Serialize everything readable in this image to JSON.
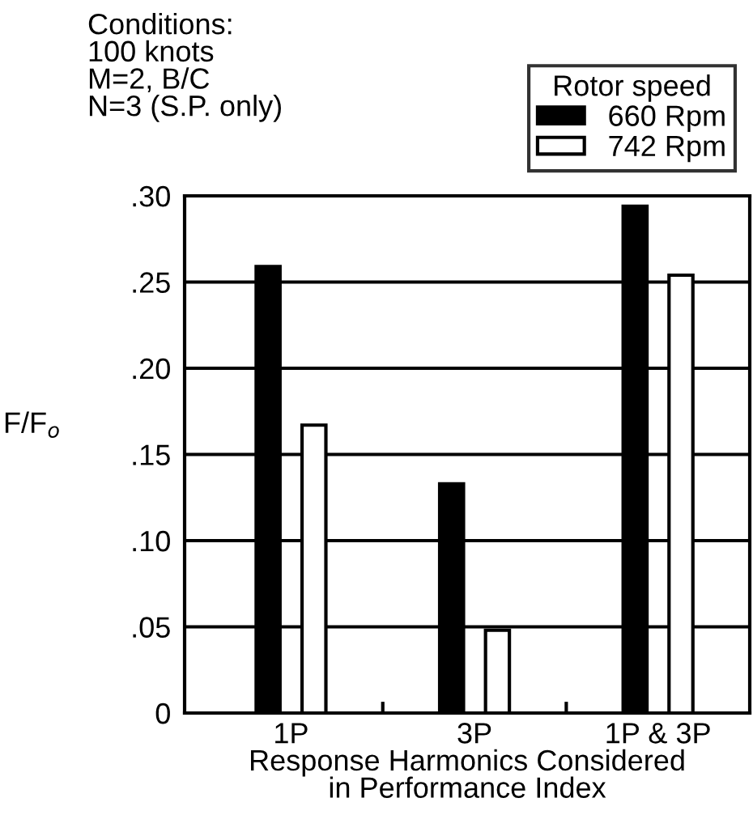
{
  "chart_data": {
    "type": "bar",
    "categories": [
      "1P",
      "3P",
      "1P & 3P"
    ],
    "series": [
      {
        "name": "660 Rpm",
        "color": "#000000",
        "values": [
          0.259,
          0.133,
          0.294
        ]
      },
      {
        "name": "742 Rpm",
        "color": "#ffffff",
        "values": [
          0.167,
          0.048,
          0.254
        ]
      }
    ],
    "xlabel": "Response Harmonics Considered\nin Performance Index",
    "ylabel": "F/F$_{o}$",
    "legend_title": "Rotor speed",
    "annotations": [
      "Conditions:\n100 knots\nM=2, B/C\nN=3 (S.P. only)"
    ],
    "ylim": [
      0,
      0.3
    ],
    "yticks": [
      0,
      {
        "value": 0.05,
        "label": ".05"
      },
      {
        "value": 0.1,
        "label": ".10"
      },
      {
        "value": 0.15,
        "label": ".15"
      },
      {
        "value": 0.2,
        "label": ".20"
      },
      {
        "value": 0.25,
        "label": ".25"
      },
      {
        "value": 0.3,
        "label": ".30"
      }
    ],
    "grid": "y",
    "legend": "top right"
  }
}
